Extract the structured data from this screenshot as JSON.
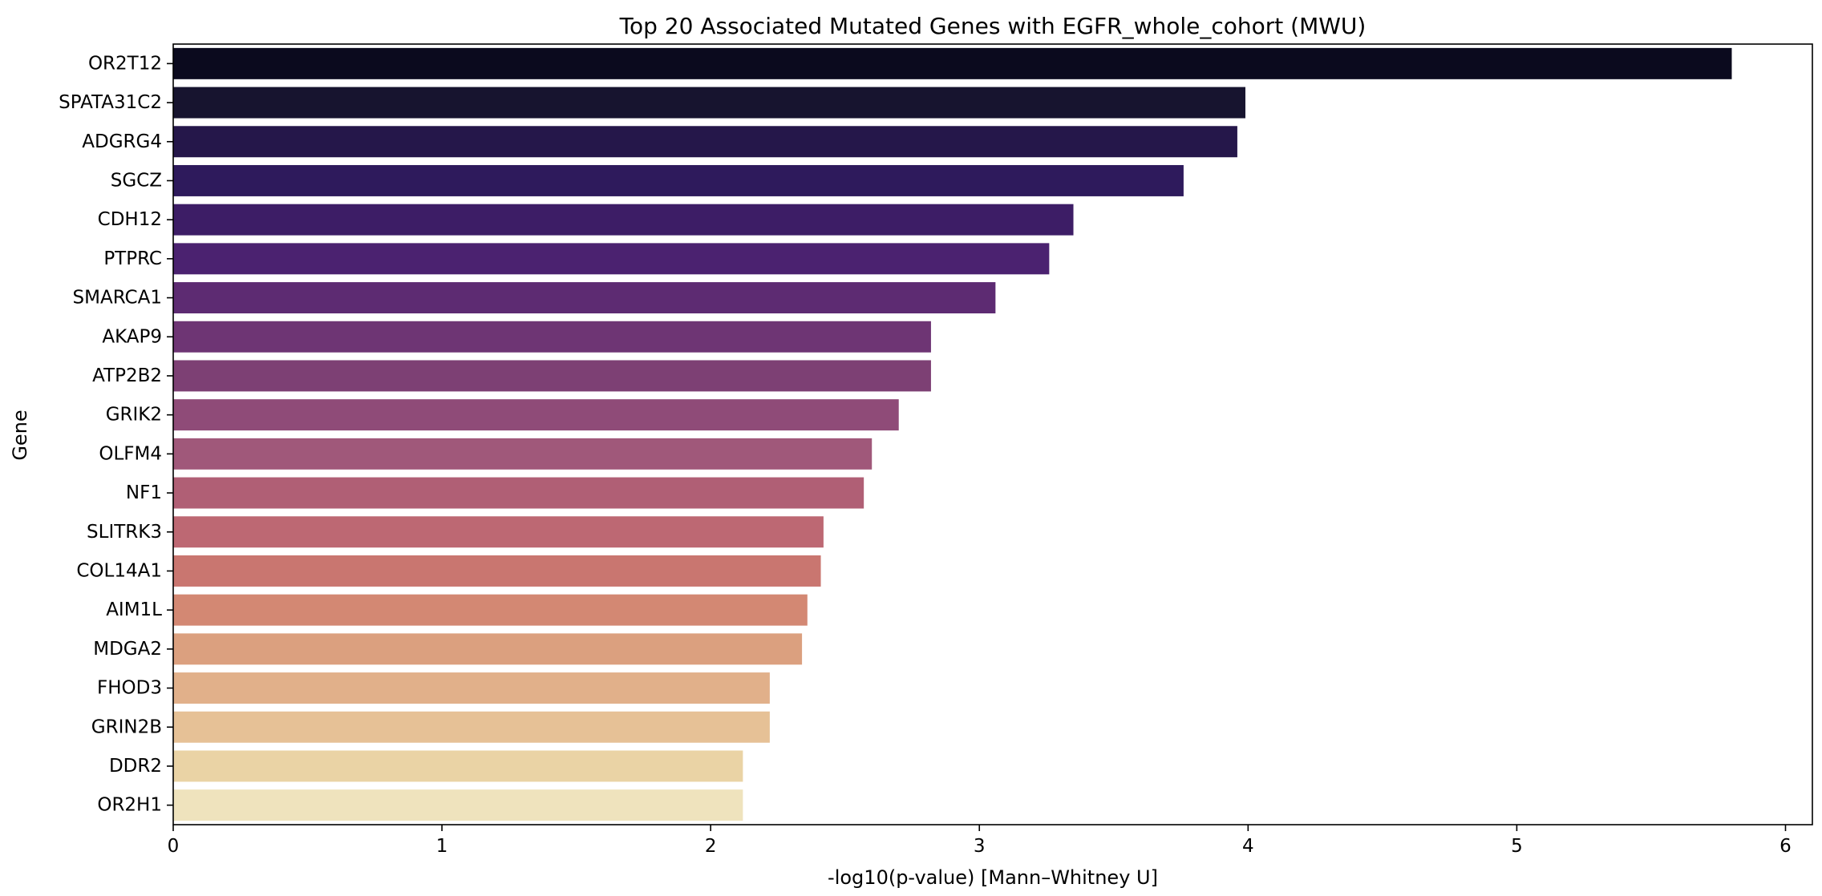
{
  "chart_data": {
    "type": "bar",
    "orientation": "horizontal",
    "title": "Top 20 Associated Mutated Genes with EGFR_whole_cohort (MWU)",
    "xlabel": "-log10(p-value) [Mann–Whitney U]",
    "ylabel": "Gene",
    "xlim": [
      0,
      6.1
    ],
    "xticks": [
      "0",
      "1",
      "2",
      "3",
      "4",
      "5",
      "6"
    ],
    "grid": false,
    "categories": [
      "OR2T12",
      "SPATA31C2",
      "ADGRG4",
      "SGCZ",
      "CDH12",
      "PTPRC",
      "SMARCA1",
      "AKAP9",
      "ATP2B2",
      "GRIK2",
      "OLFM4",
      "NF1",
      "SLITRK3",
      "COL14A1",
      "AIM1L",
      "MDGA2",
      "FHOD3",
      "GRIN2B",
      "DDR2",
      "OR2H1"
    ],
    "values": [
      5.8,
      3.99,
      3.96,
      3.76,
      3.35,
      3.26,
      3.06,
      2.82,
      2.82,
      2.7,
      2.6,
      2.57,
      2.42,
      2.41,
      2.36,
      2.34,
      2.22,
      2.22,
      2.12,
      2.12
    ],
    "colors": [
      "#0b0a1e",
      "#17142f",
      "#25174a",
      "#2e1a5c",
      "#3d1d66",
      "#4b2270",
      "#5d2b72",
      "#6e3574",
      "#7d4074",
      "#8f4b78",
      "#a0587a",
      "#b05f75",
      "#bd6873",
      "#c97670",
      "#d38873",
      "#dba07f",
      "#e1b08a",
      "#e6c196",
      "#ead3a5",
      "#efe3bd"
    ]
  }
}
